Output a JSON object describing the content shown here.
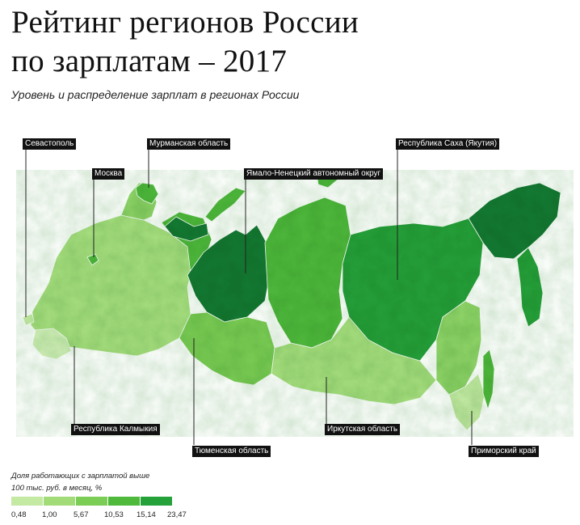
{
  "header": {
    "title_line1": "Рейтинг регионов России",
    "title_line2": "по зарплатам – 2017",
    "subtitle": "Уровень и распределение зарплат в регионах России"
  },
  "callouts": {
    "sevastopol": "Севастополь",
    "murmansk": "Мурманская область",
    "moscow": "Москва",
    "yamal": "Ямало-Ненецкий автономный округ",
    "yakutia": "Республика Саха (Якутия)",
    "kalmykia": "Республика Калмыкия",
    "tyumen": "Тюменская область",
    "irkutsk": "Иркутская область",
    "primorsky": "Приморский край"
  },
  "legend": {
    "title": "Доля работающих с зарплатой выше 100 тыс. руб. в месяц, %",
    "breaks": [
      "0,48",
      "1,00",
      "5,67",
      "10,53",
      "15,14",
      "23,47"
    ],
    "colors": [
      "#c3e9a2",
      "#a2dc79",
      "#7ccd55",
      "#4fb93c",
      "#25a13a",
      "#137a33"
    ]
  }
}
